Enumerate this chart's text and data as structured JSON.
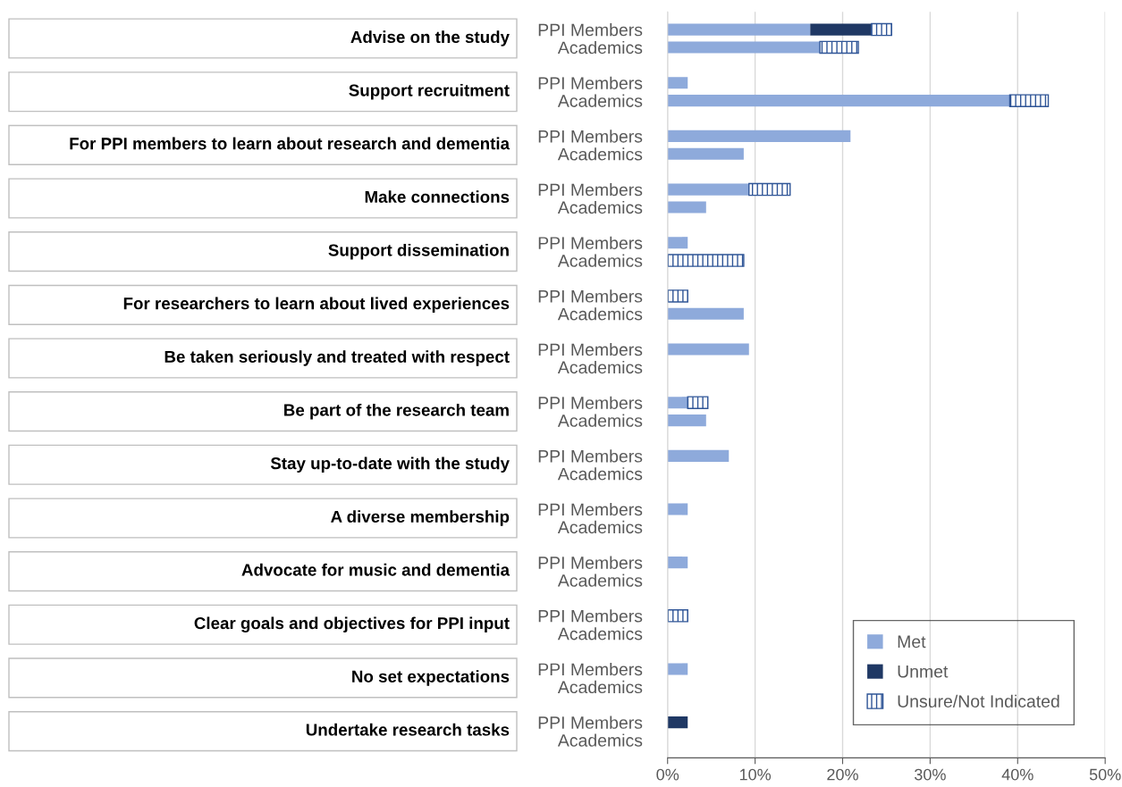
{
  "chart_data": {
    "type": "bar",
    "orientation": "horizontal",
    "stacked": true,
    "categories": [
      "PPI Members",
      "Academics",
      null,
      "PPI Members",
      "Academics",
      null,
      "PPI Members",
      "Academics",
      null,
      "PPI Members",
      "Academics",
      null,
      "PPI Members",
      "Academics",
      null,
      "PPI Members",
      "Academics",
      null,
      "PPI Members",
      "Academics",
      null,
      "PPI Members",
      "Academics",
      null,
      "PPI Members",
      "Academics",
      null,
      "PPI Members",
      "Academics",
      null,
      "PPI Members",
      "Academics",
      null,
      "PPI Members",
      "Academics",
      null,
      "PPI Members",
      "Academics",
      null,
      "PPI Members",
      "Academics"
    ],
    "series": [
      {
        "name": "Met",
        "color": "#8eaadb",
        "values": [
          16.3,
          17.4,
          null,
          2.3,
          39.1,
          null,
          20.9,
          8.7,
          null,
          9.3,
          4.4,
          null,
          2.3,
          0,
          null,
          0,
          8.7,
          null,
          9.3,
          0,
          null,
          2.3,
          4.4,
          null,
          7.0,
          0,
          null,
          2.3,
          0,
          null,
          2.3,
          0,
          null,
          0,
          0,
          null,
          2.3,
          0,
          null,
          0,
          0
        ]
      },
      {
        "name": "Unmet",
        "color": "#1f3864",
        "values": [
          7.0,
          0,
          null,
          0,
          0,
          null,
          0,
          0,
          null,
          0,
          0,
          null,
          0,
          0,
          null,
          0,
          0,
          null,
          0,
          0,
          null,
          0,
          0,
          null,
          0,
          0,
          null,
          0,
          0,
          null,
          0,
          0,
          null,
          0,
          0,
          null,
          0,
          0,
          null,
          2.3,
          0
        ]
      },
      {
        "name": "Unsure/Not Indicated",
        "color": "#2f5597",
        "values": [
          2.3,
          4.4,
          null,
          0,
          4.4,
          null,
          0,
          0,
          null,
          4.7,
          0,
          null,
          0,
          8.7,
          null,
          2.3,
          0,
          null,
          0,
          0,
          null,
          2.3,
          0,
          null,
          0,
          0,
          null,
          0,
          0,
          null,
          0,
          0,
          null,
          2.3,
          0,
          null,
          0,
          0,
          null,
          0,
          0
        ]
      }
    ],
    "annotations": [
      "Advise on the study",
      "Support recruitment",
      "For PPI members to learn about research and dementia",
      "Make connections",
      "Support dissemination",
      "For researchers to learn about lived experiences",
      "Be taken seriously and treated with respect",
      "Be part of the research team",
      "Stay up-to-date with the study",
      "A diverse membership",
      "Advocate for music and dementia",
      "Clear goals and objectives for PPI input",
      "No set expectations",
      "Undertake research tasks"
    ],
    "xlim": [
      0,
      50
    ],
    "xticks": [
      {
        "value": 0,
        "label": "0%"
      },
      {
        "value": 10,
        "label": "10%"
      },
      {
        "value": 20,
        "label": "20%"
      },
      {
        "value": 30,
        "label": "30%"
      },
      {
        "value": 40,
        "label": "40%"
      },
      {
        "value": 50,
        "label": "50%"
      }
    ],
    "grid": "x",
    "legend": "bottom right"
  }
}
